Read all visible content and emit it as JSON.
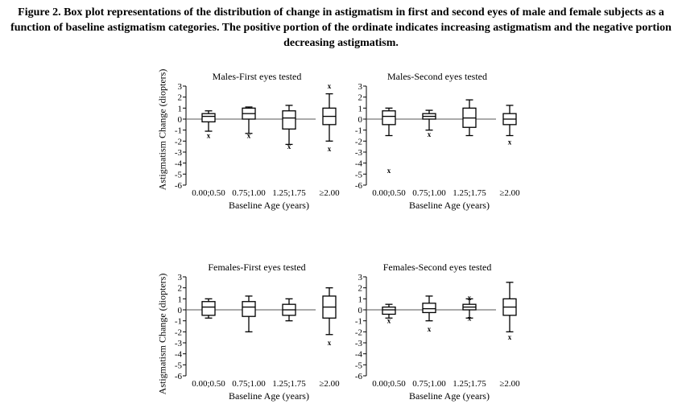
{
  "caption": "Figure 2. Box plot representations of the distribution of change in astigmatism in first and second eyes of male and female subjects as a function of baseline astigmatism categories. The positive portion of the ordinate indicates increasing astigmatism and the negative portion decreasing astigmatism.",
  "ylabel": "Astigmatism Change (diopters)",
  "outlier_marker": "x",
  "chart_data": [
    {
      "type": "box",
      "title": "Males-First eyes tested",
      "xlabel": "Baseline Age (years)",
      "ylim": [
        -6,
        3
      ],
      "yticks": [
        "3",
        "2",
        "1",
        "0",
        "-1",
        "-2",
        "-3",
        "-4",
        "-5",
        "-6"
      ],
      "categories": [
        "0.00;0.50",
        "0.75;1.00",
        "1.25;1.75",
        "≥2.00"
      ],
      "boxes": [
        {
          "min": -1.1,
          "q1": -0.25,
          "median": 0.25,
          "q3": 0.5,
          "max": 0.75,
          "outliers": [
            -1.5
          ]
        },
        {
          "min": -1.3,
          "q1": 0.0,
          "median": 0.5,
          "q3": 1.0,
          "max": 1.1,
          "outliers": [
            -1.5
          ]
        },
        {
          "min": -2.3,
          "q1": -0.9,
          "median": 0.1,
          "q3": 0.75,
          "max": 1.25,
          "outliers": [
            -2.5
          ]
        },
        {
          "min": -2.0,
          "q1": -0.5,
          "median": 0.25,
          "q3": 1.0,
          "max": 2.3,
          "outliers": [
            3.0,
            -2.7
          ]
        }
      ]
    },
    {
      "type": "box",
      "title": "Males-Second eyes tested",
      "xlabel": "Baseline Age (years)",
      "ylim": [
        -6,
        3
      ],
      "yticks": [
        "3",
        "2",
        "1",
        "0",
        "-1",
        "-2",
        "-3",
        "-4",
        "-5",
        "-6"
      ],
      "categories": [
        "0.00;0.50",
        "0.75;1.00",
        "1.25;1.75",
        "≥2.00"
      ],
      "boxes": [
        {
          "min": -1.5,
          "q1": -0.5,
          "median": 0.25,
          "q3": 0.75,
          "max": 1.0,
          "outliers": [
            -4.7
          ]
        },
        {
          "min": -1.0,
          "q1": 0.0,
          "median": 0.25,
          "q3": 0.5,
          "max": 0.8,
          "outliers": [
            -1.4
          ]
        },
        {
          "min": -1.5,
          "q1": -0.75,
          "median": 0.1,
          "q3": 1.0,
          "max": 1.75,
          "outliers": []
        },
        {
          "min": -1.5,
          "q1": -0.5,
          "median": 0.0,
          "q3": 0.5,
          "max": 1.25,
          "outliers": [
            -2.1
          ]
        }
      ]
    },
    {
      "type": "box",
      "title": "Females-First eyes tested",
      "xlabel": "Baseline Age (years)",
      "ylim": [
        -6,
        3
      ],
      "yticks": [
        "3",
        "2",
        "1",
        "0",
        "-1",
        "-2",
        "-3",
        "-4",
        "-5",
        "-6"
      ],
      "categories": [
        "0.00;0.50",
        "0.75;1.00",
        "1.25;1.75",
        "≥2.00"
      ],
      "boxes": [
        {
          "min": -0.75,
          "q1": -0.5,
          "median": 0.25,
          "q3": 0.75,
          "max": 1.0,
          "outliers": []
        },
        {
          "min": -2.0,
          "q1": -0.6,
          "median": 0.25,
          "q3": 0.75,
          "max": 1.25,
          "outliers": []
        },
        {
          "min": -1.0,
          "q1": -0.5,
          "median": 0.0,
          "q3": 0.5,
          "max": 1.0,
          "outliers": []
        },
        {
          "min": -2.25,
          "q1": -0.75,
          "median": 0.25,
          "q3": 1.25,
          "max": 2.0,
          "outliers": [
            -3.0
          ]
        }
      ]
    },
    {
      "type": "box",
      "title": "Females-Second eyes tested",
      "xlabel": "Baseline Age (years)",
      "ylim": [
        -6,
        3
      ],
      "yticks": [
        "3",
        "2",
        "1",
        "0",
        "-1",
        "-2",
        "-3",
        "-4",
        "-5",
        "-6"
      ],
      "categories": [
        "0.00;0.50",
        "0.75;1.00",
        "1.25;1.75",
        "≥2.00"
      ],
      "boxes": [
        {
          "min": -0.75,
          "q1": -0.4,
          "median": 0.0,
          "q3": 0.25,
          "max": 0.5,
          "outliers": [
            -1.0
          ]
        },
        {
          "min": -1.0,
          "q1": -0.25,
          "median": 0.1,
          "q3": 0.6,
          "max": 1.25,
          "outliers": [
            -1.75
          ]
        },
        {
          "min": -0.75,
          "q1": 0.0,
          "median": 0.25,
          "q3": 0.5,
          "max": 1.0,
          "outliers": [
            1.1,
            -0.75
          ]
        },
        {
          "min": -2.0,
          "q1": -0.5,
          "median": 0.25,
          "q3": 1.0,
          "max": 2.5,
          "outliers": [
            -2.5
          ]
        }
      ]
    }
  ]
}
